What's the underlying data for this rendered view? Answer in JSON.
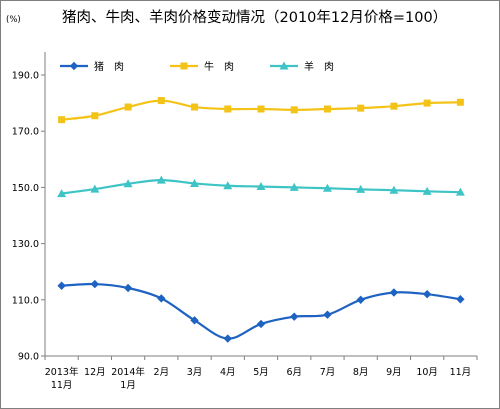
{
  "chart_data": {
    "type": "line",
    "title": "猪肉、牛肉、羊肉价格变动情况（2010年12月价格=100）",
    "unit": "(%)",
    "categories": [
      [
        "2013年",
        "11月"
      ],
      [
        "12月"
      ],
      [
        "2014年",
        "1月"
      ],
      [
        "2月"
      ],
      [
        "3月"
      ],
      [
        "4月"
      ],
      [
        "5月"
      ],
      [
        "6月"
      ],
      [
        "7月"
      ],
      [
        "8月"
      ],
      [
        "9月"
      ],
      [
        "10月"
      ],
      [
        "11月"
      ]
    ],
    "ylim": [
      90,
      190
    ],
    "yticks": [
      "90.0",
      "110.0",
      "130.0",
      "150.0",
      "170.0",
      "190.0"
    ],
    "ytick_values": [
      90,
      110,
      130,
      150,
      170,
      190
    ],
    "series": [
      {
        "name": "猪　肉",
        "color": "#1f63c2",
        "marker": "diamond",
        "values": [
          115.0,
          115.6,
          114.2,
          110.5,
          102.7,
          96.2,
          101.4,
          104.0,
          104.7,
          110.0,
          112.6,
          112.0,
          110.2
        ]
      },
      {
        "name": "牛　肉",
        "color": "#f3c317",
        "marker": "square",
        "values": [
          174.1,
          175.5,
          178.6,
          180.9,
          178.6,
          177.9,
          177.9,
          177.6,
          177.9,
          178.2,
          178.9,
          180.0,
          180.3
        ]
      },
      {
        "name": "羊　肉",
        "color": "#3fc4c6",
        "marker": "triangle",
        "values": [
          147.8,
          149.4,
          151.3,
          152.6,
          151.4,
          150.6,
          150.3,
          150.0,
          149.7,
          149.3,
          149.0,
          148.6,
          148.3
        ]
      }
    ],
    "grid": false,
    "legend_position": "top-left"
  }
}
